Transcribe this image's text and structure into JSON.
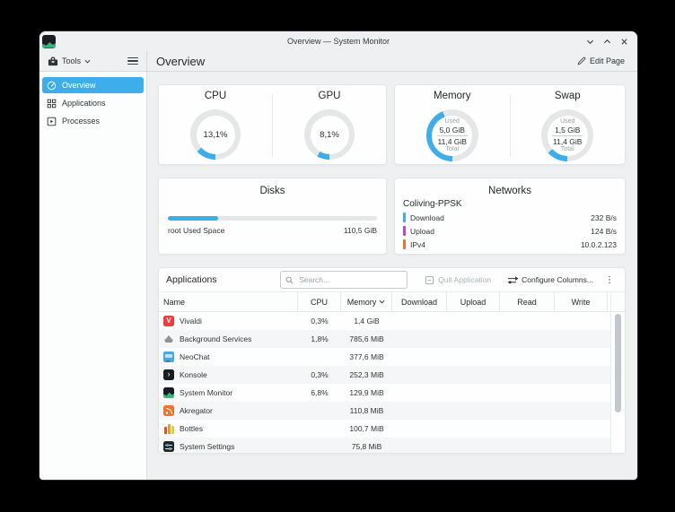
{
  "colors": {
    "accent": "#3daee9",
    "track": "#e4e6e8"
  },
  "titlebar": {
    "title": "Overview — System Monitor"
  },
  "toolbar": {
    "tools_label": "Tools",
    "page_title": "Overview",
    "edit_page_label": "Edit Page"
  },
  "sidebar": {
    "items": [
      {
        "label": "Overview",
        "icon": "gauge-icon",
        "selected": true
      },
      {
        "label": "Applications",
        "icon": "grid-icon",
        "selected": false
      },
      {
        "label": "Processes",
        "icon": "process-icon",
        "selected": false
      }
    ]
  },
  "gauges": [
    {
      "title": "CPU",
      "value": "13,1%",
      "pct": 13.1
    },
    {
      "title": "GPU",
      "value": "8,1%",
      "pct": 8.1
    },
    {
      "title": "Memory",
      "used_label": "Used",
      "used": "5,0 GiB",
      "total": "11,4 GiB",
      "total_label": "Total",
      "pct": 43.9
    },
    {
      "title": "Swap",
      "used_label": "Used",
      "used": "1,5 GiB",
      "total": "11,4 GiB",
      "total_label": "Total",
      "pct": 13.2
    }
  ],
  "disks": {
    "title": "Disks",
    "bar_pct": 24,
    "label": "root Used Space",
    "value": "110,5 GiB"
  },
  "networks": {
    "title": "Networks",
    "interface": "Coliving-PPSK",
    "rows": [
      {
        "label": "Download",
        "value": "232 B/s",
        "color": "#3daee9"
      },
      {
        "label": "Upload",
        "value": "124 B/s",
        "color": "#c63fd1"
      },
      {
        "label": "IPv4",
        "value": "10.0.2.123",
        "color": "#ec7431"
      }
    ]
  },
  "applications": {
    "title": "Applications",
    "search_placeholder": "Search...",
    "quit_label": "Quit Application",
    "configure_label": "Configure Columns...",
    "columns": [
      "Name",
      "CPU",
      "Memory",
      "Download",
      "Upload",
      "Read",
      "Write"
    ],
    "sort_column": "Memory",
    "rows": [
      {
        "name": "Vivaldi",
        "cpu": "0,3%",
        "memory": "1,4 GiB",
        "icon": "vivaldi"
      },
      {
        "name": "Background Services",
        "cpu": "1,8%",
        "memory": "785,6 MiB",
        "icon": "background-services"
      },
      {
        "name": "NeoChat",
        "cpu": "",
        "memory": "377,6 MiB",
        "icon": "neochat"
      },
      {
        "name": "Konsole",
        "cpu": "0,3%",
        "memory": "252,3 MiB",
        "icon": "konsole"
      },
      {
        "name": "System Monitor",
        "cpu": "6,8%",
        "memory": "129,9 MiB",
        "icon": "system-monitor"
      },
      {
        "name": "Akregator",
        "cpu": "",
        "memory": "110,8 MiB",
        "icon": "akregator"
      },
      {
        "name": "Bottles",
        "cpu": "",
        "memory": "100,7 MiB",
        "icon": "bottles"
      },
      {
        "name": "System Settings",
        "cpu": "",
        "memory": "75,8 MiB",
        "icon": "system-settings"
      }
    ]
  }
}
